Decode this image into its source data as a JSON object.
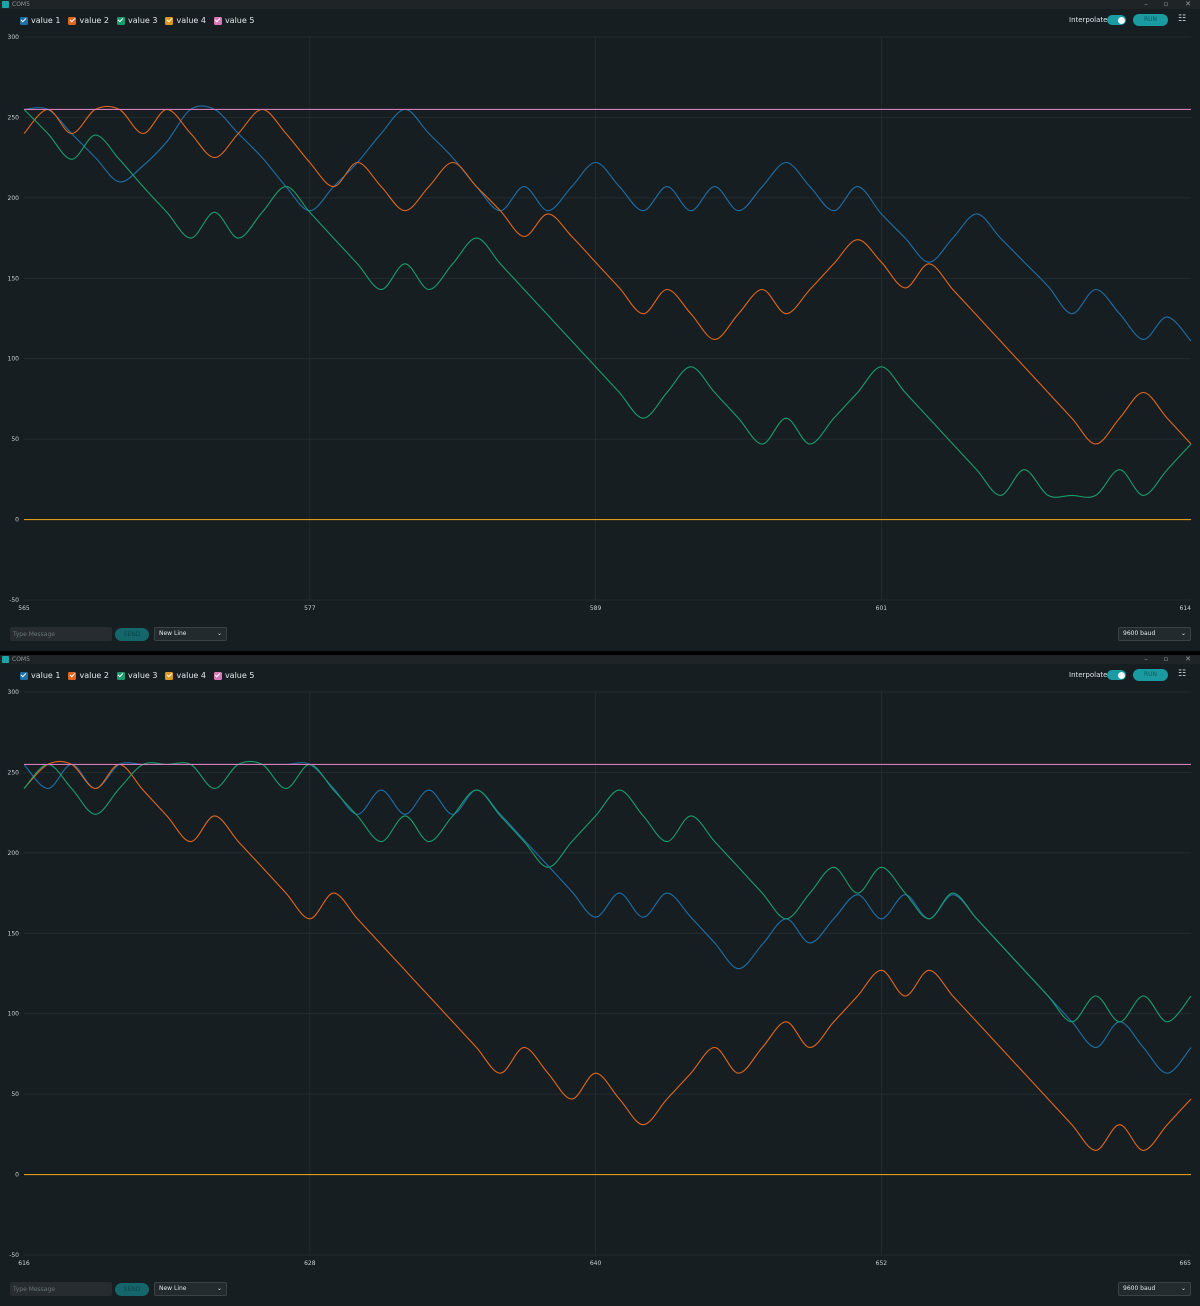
{
  "windows": [
    {
      "title": "COM5",
      "controls": {
        "minimize": "–",
        "maximize": "▫",
        "close": "✕"
      },
      "legend": [
        {
          "label": "value 1",
          "color": "#1f6fa8"
        },
        {
          "label": "value 2",
          "color": "#e0661f"
        },
        {
          "label": "value 3",
          "color": "#1b9c6c"
        },
        {
          "label": "value 4",
          "color": "#d99a1e"
        },
        {
          "label": "value 5",
          "color": "#d27bb6"
        }
      ],
      "interpolate_label": "Interpolate",
      "interpolate_on": true,
      "run_label": "RUN",
      "menu_icon": "☷",
      "input_placeholder": "Type Message",
      "send_label": "SEND",
      "line_ending": "New Line",
      "baud": "9600 baud",
      "chart_data": {
        "type": "line",
        "ylim": [
          -50,
          300
        ],
        "yticks": [
          300,
          250,
          200,
          150,
          100,
          50,
          0,
          -50
        ],
        "xlim": [
          565,
          614
        ],
        "xticks": [
          565,
          577,
          589,
          601,
          614
        ],
        "grid": true,
        "legend_position": "top-left",
        "series": [
          {
            "name": "value 1",
            "color": "#1f6fa8",
            "x": [
              565,
              566,
              567,
              568,
              569,
              570,
              571,
              572,
              573,
              574,
              575,
              576,
              577,
              578,
              579,
              580,
              581,
              582,
              583,
              584,
              585,
              586,
              587,
              588,
              589,
              590,
              591,
              592,
              593,
              594,
              595,
              596,
              597,
              598,
              599,
              600,
              601,
              602,
              603,
              604,
              605,
              606,
              607,
              608,
              609,
              610,
              611,
              612,
              613,
              614
            ],
            "y": [
              255,
              255,
              240,
              225,
              210,
              220,
              235,
              255,
              255,
              240,
              225,
              207,
              192,
              207,
              222,
              240,
              255,
              240,
              225,
              207,
              192,
              207,
              192,
              207,
              222,
              207,
              192,
              207,
              192,
              207,
              192,
              207,
              222,
              207,
              192,
              207,
              190,
              175,
              160,
              175,
              190,
              175,
              160,
              145,
              128,
              143,
              128,
              112,
              126,
              111
            ]
          },
          {
            "name": "value 2",
            "color": "#e0661f",
            "x": [
              565,
              566,
              567,
              568,
              569,
              570,
              571,
              572,
              573,
              574,
              575,
              576,
              577,
              578,
              579,
              580,
              581,
              582,
              583,
              584,
              585,
              586,
              587,
              588,
              589,
              590,
              591,
              592,
              593,
              594,
              595,
              596,
              597,
              598,
              599,
              600,
              601,
              602,
              603,
              604,
              605,
              606,
              607,
              608,
              609,
              610,
              611,
              612,
              613,
              614
            ],
            "y": [
              240,
              255,
              240,
              255,
              255,
              240,
              255,
              240,
              225,
              240,
              255,
              240,
              222,
              207,
              222,
              207,
              192,
              207,
              222,
              207,
              192,
              176,
              190,
              176,
              160,
              144,
              128,
              143,
              128,
              112,
              128,
              143,
              128,
              143,
              159,
              174,
              160,
              144,
              159,
              143,
              127,
              111,
              95,
              79,
              63,
              47,
              63,
              79,
              63,
              47
            ]
          },
          {
            "name": "value 3",
            "color": "#1b9c6c",
            "x": [
              565,
              566,
              567,
              568,
              569,
              570,
              571,
              572,
              573,
              574,
              575,
              576,
              577,
              578,
              579,
              580,
              581,
              582,
              583,
              584,
              585,
              586,
              587,
              588,
              589,
              590,
              591,
              592,
              593,
              594,
              595,
              596,
              597,
              598,
              599,
              600,
              601,
              602,
              603,
              604,
              605,
              606,
              607,
              608,
              609,
              610,
              611,
              612,
              613,
              614
            ],
            "y": [
              255,
              240,
              224,
              239,
              224,
              207,
              191,
              175,
              191,
              175,
              191,
              207,
              191,
              175,
              159,
              143,
              159,
              143,
              159,
              175,
              159,
              143,
              127,
              111,
              95,
              79,
              63,
              79,
              95,
              79,
              63,
              47,
              63,
              47,
              63,
              79,
              95,
              79,
              63,
              47,
              31,
              15,
              31,
              15,
              15,
              15,
              31,
              15,
              31,
              47
            ]
          },
          {
            "name": "value 4",
            "color": "#d99a1e",
            "x": [
              565,
              614
            ],
            "y": [
              0,
              0
            ]
          },
          {
            "name": "value 5",
            "color": "#d27bb6",
            "x": [
              565,
              614
            ],
            "y": [
              255,
              255
            ]
          }
        ]
      }
    },
    {
      "title": "COM5",
      "controls": {
        "minimize": "–",
        "maximize": "▫",
        "close": "✕"
      },
      "legend": [
        {
          "label": "value 1",
          "color": "#1f6fa8"
        },
        {
          "label": "value 2",
          "color": "#e0661f"
        },
        {
          "label": "value 3",
          "color": "#1b9c6c"
        },
        {
          "label": "value 4",
          "color": "#d99a1e"
        },
        {
          "label": "value 5",
          "color": "#d27bb6"
        }
      ],
      "interpolate_label": "Interpolate",
      "interpolate_on": true,
      "run_label": "RUN",
      "menu_icon": "☷",
      "input_placeholder": "Type Message",
      "send_label": "SEND",
      "line_ending": "New Line",
      "baud": "9600 baud",
      "chart_data": {
        "type": "line",
        "ylim": [
          -50,
          300
        ],
        "yticks": [
          300,
          250,
          200,
          150,
          100,
          50,
          0,
          -50
        ],
        "xlim": [
          616,
          665
        ],
        "xticks": [
          616,
          628,
          640,
          652,
          665
        ],
        "grid": true,
        "legend_position": "top-left",
        "series": [
          {
            "name": "value 1",
            "color": "#1f6fa8",
            "x": [
              616,
              617,
              618,
              619,
              620,
              621,
              622,
              623,
              624,
              625,
              626,
              627,
              628,
              629,
              630,
              631,
              632,
              633,
              634,
              635,
              636,
              637,
              638,
              639,
              640,
              641,
              642,
              643,
              644,
              645,
              646,
              647,
              648,
              649,
              650,
              651,
              652,
              653,
              654,
              655,
              656,
              657,
              658,
              659,
              660,
              661,
              662,
              663,
              664,
              665
            ],
            "y": [
              255,
              240,
              255,
              240,
              255,
              255,
              255,
              255,
              255,
              255,
              255,
              255,
              255,
              240,
              224,
              239,
              224,
              239,
              224,
              239,
              224,
              208,
              192,
              176,
              160,
              175,
              160,
              175,
              160,
              144,
              128,
              143,
              159,
              144,
              159,
              174,
              159,
              174,
              159,
              174,
              159,
              143,
              127,
              111,
              95,
              79,
              95,
              79,
              63,
              79
            ]
          },
          {
            "name": "value 2",
            "color": "#e0661f",
            "x": [
              616,
              617,
              618,
              619,
              620,
              621,
              622,
              623,
              624,
              625,
              626,
              627,
              628,
              629,
              630,
              631,
              632,
              633,
              634,
              635,
              636,
              637,
              638,
              639,
              640,
              641,
              642,
              643,
              644,
              645,
              646,
              647,
              648,
              649,
              650,
              651,
              652,
              653,
              654,
              655,
              656,
              657,
              658,
              659,
              660,
              661,
              662,
              663,
              664,
              665
            ],
            "y": [
              240,
              255,
              255,
              240,
              255,
              239,
              223,
              207,
              223,
              207,
              191,
              175,
              159,
              175,
              159,
              143,
              127,
              111,
              95,
              79,
              63,
              79,
              63,
              47,
              63,
              47,
              31,
              47,
              63,
              79,
              63,
              79,
              95,
              79,
              95,
              111,
              127,
              111,
              127,
              111,
              95,
              79,
              63,
              47,
              31,
              15,
              31,
              15,
              31,
              47
            ]
          },
          {
            "name": "value 3",
            "color": "#1b9c6c",
            "x": [
              616,
              617,
              618,
              619,
              620,
              621,
              622,
              623,
              624,
              625,
              626,
              627,
              628,
              629,
              630,
              631,
              632,
              633,
              634,
              635,
              636,
              637,
              638,
              639,
              640,
              641,
              642,
              643,
              644,
              645,
              646,
              647,
              648,
              649,
              650,
              651,
              652,
              653,
              654,
              655,
              656,
              657,
              658,
              659,
              660,
              661,
              662,
              663,
              664,
              665
            ],
            "y": [
              240,
              255,
              240,
              224,
              240,
              255,
              255,
              255,
              240,
              255,
              255,
              240,
              255,
              239,
              223,
              207,
              223,
              207,
              223,
              239,
              223,
              207,
              191,
              207,
              223,
              239,
              223,
              207,
              223,
              207,
              191,
              175,
              159,
              175,
              191,
              175,
              191,
              175,
              159,
              175,
              159,
              143,
              127,
              111,
              95,
              111,
              95,
              111,
              95,
              111
            ]
          },
          {
            "name": "value 4",
            "color": "#d99a1e",
            "x": [
              616,
              665
            ],
            "y": [
              0,
              0
            ]
          },
          {
            "name": "value 5",
            "color": "#d27bb6",
            "x": [
              616,
              665
            ],
            "y": [
              255,
              255
            ]
          }
        ]
      }
    }
  ]
}
